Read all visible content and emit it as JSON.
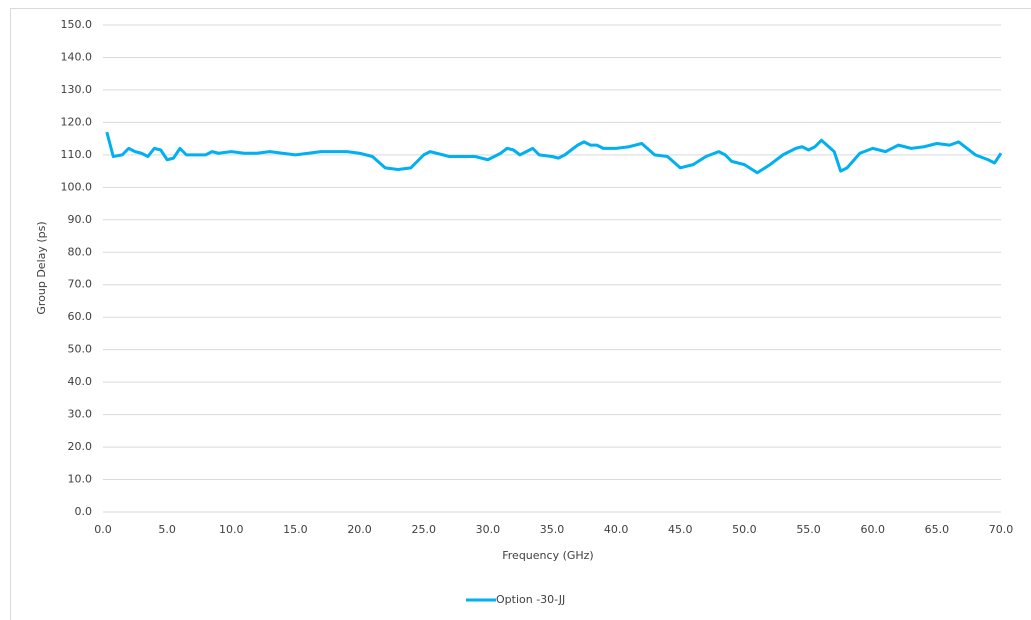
{
  "chart_data": {
    "type": "line",
    "x_label": "Frequency (GHz)",
    "y_label": "Group Delay (ps)",
    "x": [
      0.3,
      0.8,
      1.5,
      2,
      2.5,
      3,
      3.5,
      4,
      4.5,
      5,
      5.5,
      6,
      6.5,
      7,
      8,
      8.5,
      9,
      10,
      11,
      12,
      13,
      14,
      15,
      16,
      17,
      18,
      19,
      20,
      21,
      22,
      23,
      24,
      25,
      25.5,
      26,
      27,
      28,
      29,
      30,
      31,
      31.5,
      32,
      32.5,
      33,
      33.5,
      34,
      35,
      35.5,
      36,
      37,
      37.5,
      38,
      38.5,
      39,
      40,
      41,
      42,
      43,
      44,
      45,
      46,
      47,
      48,
      48.5,
      49,
      50,
      51,
      52,
      53,
      54,
      54.5,
      55,
      55.5,
      56,
      57,
      57.5,
      58,
      59,
      60,
      61,
      62,
      63,
      64,
      65,
      66,
      66.7,
      68,
      69,
      69.5,
      70
    ],
    "series": [
      {
        "name": "Option -30-JJ",
        "color": "#00b0f0",
        "values": [
          117,
          109.5,
          110,
          112,
          111,
          110.5,
          109.5,
          112,
          111.5,
          108.5,
          109,
          112,
          110,
          110,
          110,
          111,
          110.5,
          111,
          110.5,
          110.5,
          111,
          110.5,
          110,
          110.5,
          111,
          111,
          111,
          110.5,
          109.5,
          106,
          105.5,
          106,
          110,
          111,
          110.5,
          109.5,
          109.5,
          109.5,
          108.5,
          110.5,
          112,
          111.5,
          110,
          111,
          112,
          110,
          109.5,
          109,
          110,
          113,
          114,
          113,
          113,
          112,
          112,
          112.5,
          113.5,
          110,
          109.5,
          106,
          107,
          109.5,
          111,
          110,
          108,
          107,
          104.5,
          107,
          110,
          112,
          112.5,
          111.5,
          112.5,
          114.5,
          111,
          105,
          106,
          110.5,
          112,
          111,
          113,
          112,
          112.5,
          113.5,
          113,
          114,
          110,
          108.5,
          107.5,
          110.5
        ]
      }
    ],
    "xlim": [
      0,
      70
    ],
    "ylim": [
      0,
      150
    ],
    "xticks": [
      {
        "value": 0,
        "label": "0.0"
      },
      {
        "value": 5,
        "label": "5.0"
      },
      {
        "value": 10,
        "label": "10.0"
      },
      {
        "value": 15,
        "label": "15.0"
      },
      {
        "value": 20,
        "label": "20.0"
      },
      {
        "value": 25,
        "label": "25.0"
      },
      {
        "value": 30,
        "label": "30.0"
      },
      {
        "value": 35,
        "label": "35.0"
      },
      {
        "value": 40,
        "label": "40.0"
      },
      {
        "value": 45,
        "label": "45.0"
      },
      {
        "value": 50,
        "label": "50.0"
      },
      {
        "value": 55,
        "label": "55.0"
      },
      {
        "value": 60,
        "label": "60.0"
      },
      {
        "value": 65,
        "label": "65.0"
      },
      {
        "value": 70,
        "label": "70.0"
      }
    ],
    "yticks": [
      {
        "value": 0,
        "label": "0.0"
      },
      {
        "value": 10,
        "label": "10.0"
      },
      {
        "value": 20,
        "label": "20.0"
      },
      {
        "value": 30,
        "label": "30.0"
      },
      {
        "value": 40,
        "label": "40.0"
      },
      {
        "value": 50,
        "label": "50.0"
      },
      {
        "value": 60,
        "label": "60.0"
      },
      {
        "value": 70,
        "label": "70.0"
      },
      {
        "value": 80,
        "label": "80.0"
      },
      {
        "value": 90,
        "label": "90.0"
      },
      {
        "value": 100,
        "label": "100.0"
      },
      {
        "value": 110,
        "label": "110.0"
      },
      {
        "value": 120,
        "label": "120.0"
      },
      {
        "value": 130,
        "label": "130.0"
      },
      {
        "value": 140,
        "label": "140.0"
      },
      {
        "value": 150,
        "label": "150.0"
      }
    ],
    "grid": true,
    "legend": "bottom"
  }
}
